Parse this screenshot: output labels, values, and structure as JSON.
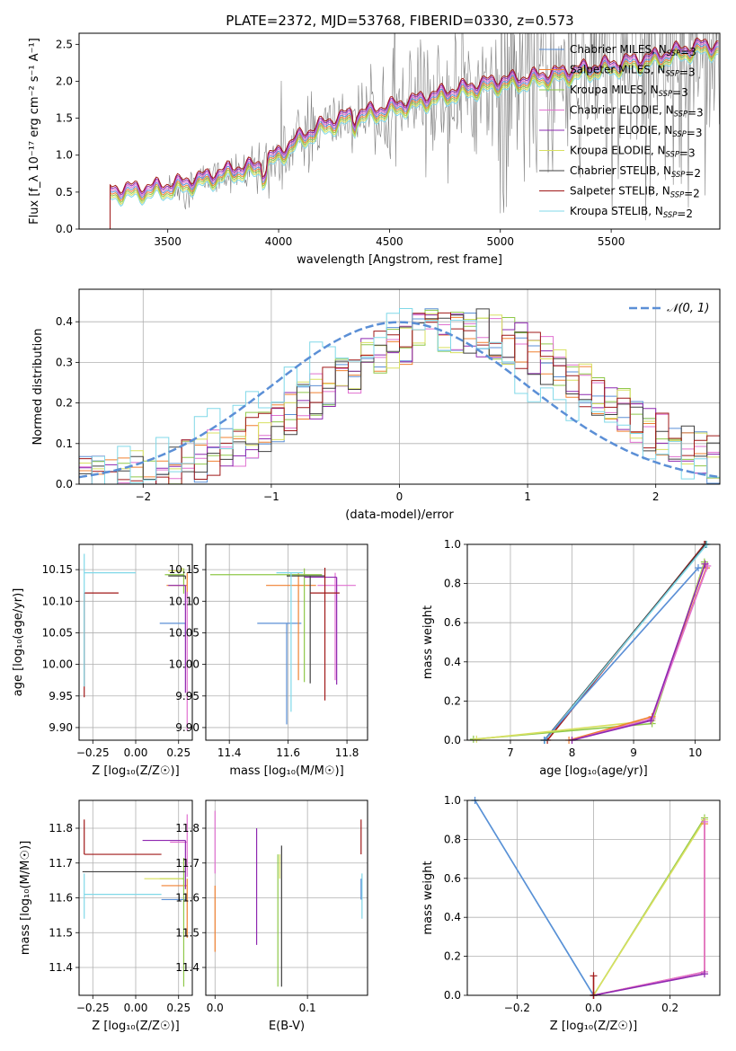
{
  "title": "PLATE=2372, MJD=53768, FIBERID=0330, z=0.573",
  "colors": {
    "chabrier_miles": "#5b8fd6",
    "salpeter_miles": "#f08030",
    "kroupa_miles": "#8fc84a",
    "chabrier_elodie": "#e070d0",
    "salpeter_elodie": "#8e28b0",
    "kroupa_elodie": "#d8e060",
    "chabrier_stelib": "#404040",
    "salpeter_stelib": "#a01818",
    "kroupa_stelib": "#80d8e8",
    "data_gray": "#808080",
    "normal_curve": "#5b8fd6",
    "grid": "#b0b0b0"
  },
  "chart_data": [
    {
      "id": "spectrum",
      "type": "line",
      "title": "PLATE=2372, MJD=53768, FIBERID=0330, z=0.573",
      "xlabel": "wavelength [Angstrom, rest frame]",
      "ylabel": "Flux [f_λ 10⁻¹⁷ erg cm⁻² s⁻¹ A⁻¹]",
      "xlim": [
        3100,
        5990
      ],
      "ylim": [
        0,
        2.65
      ],
      "xticks": [
        "3500",
        "4000",
        "4500",
        "5000",
        "5500"
      ],
      "yticks": [
        "0.0",
        "0.5",
        "1.0",
        "1.5",
        "2.0",
        "2.5"
      ],
      "grid": false,
      "legend_position": "right",
      "legend": [
        {
          "label": "Chabrier MILES, N_SSP=3",
          "color_key": "chabrier_miles"
        },
        {
          "label": "Salpeter MILES, N_SSP=3",
          "color_key": "salpeter_miles"
        },
        {
          "label": "Kroupa MILES, N_SSP=3",
          "color_key": "kroupa_miles"
        },
        {
          "label": "Chabrier ELODIE, N_SSP=3",
          "color_key": "chabrier_elodie"
        },
        {
          "label": "Salpeter ELODIE, N_SSP=3",
          "color_key": "salpeter_elodie"
        },
        {
          "label": "Kroupa ELODIE, N_SSP=3",
          "color_key": "kroupa_elodie"
        },
        {
          "label": "Chabrier STELIB, N_SSP=2",
          "color_key": "chabrier_stelib"
        },
        {
          "label": "Salpeter STELIB, N_SSP=2",
          "color_key": "salpeter_stelib"
        },
        {
          "label": "Kroupa STELIB, N_SSP=2",
          "color_key": "kroupa_stelib"
        }
      ],
      "model_trend": {
        "x": [
          3240,
          3400,
          3500,
          3600,
          3700,
          3800,
          3900,
          4000,
          4100,
          4200,
          4300,
          4400,
          4500,
          4600,
          4700,
          4800,
          4900,
          5000,
          5100,
          5200,
          5300,
          5400,
          5500,
          5600,
          5700,
          5800,
          5900
        ],
        "y": [
          0.5,
          0.52,
          0.55,
          0.62,
          0.7,
          0.78,
          0.82,
          1.0,
          1.22,
          1.38,
          1.5,
          1.55,
          1.62,
          1.7,
          1.78,
          1.85,
          1.92,
          1.98,
          2.0,
          2.05,
          2.1,
          2.15,
          2.2,
          2.25,
          2.3,
          2.38,
          2.45
        ]
      }
    },
    {
      "id": "residual_histogram",
      "type": "line",
      "xlabel": "(data-model)/error",
      "ylabel": "Normed distribution",
      "xlim": [
        -2.5,
        2.5
      ],
      "ylim": [
        0,
        0.48
      ],
      "xticks": [
        "−2",
        "−1",
        "0",
        "1",
        "2"
      ],
      "yticks": [
        "0.0",
        "0.1",
        "0.2",
        "0.3",
        "0.4"
      ],
      "grid": true,
      "legend_position": "top-right",
      "legend": [
        {
          "label": "𝒩(0, 1)",
          "color_key": "normal_curve"
        }
      ],
      "bin_width": 0.1,
      "hist_mean": 0.45,
      "hist_sigma": 1.05
    },
    {
      "id": "age_vs_Z",
      "type": "scatter",
      "xlabel": "Z [log₁₀(Z/Z☉)]",
      "ylabel": "age  [log₁₀(age/yr)]",
      "xlim": [
        -0.33,
        0.33
      ],
      "ylim": [
        9.88,
        10.19
      ],
      "xticks": [
        "−0.25",
        "0.00",
        "0.25"
      ],
      "yticks": [
        "9.90",
        "9.95",
        "10.00",
        "10.05",
        "10.10",
        "10.15"
      ],
      "grid": true,
      "points": [
        {
          "color_key": "chabrier_miles",
          "x": 0.29,
          "y": 10.065,
          "xerr": [
            0.15,
            0.0
          ],
          "yerr": [
            0.02,
            0.0
          ]
        },
        {
          "color_key": "salpeter_miles",
          "x": 0.3,
          "y": 10.125,
          "xerr": [
            0.12,
            0.0
          ],
          "yerr": [
            0.02,
            0.02
          ]
        },
        {
          "color_key": "kroupa_miles",
          "x": 0.28,
          "y": 10.142,
          "xerr": [
            0.11,
            0.0
          ],
          "yerr": [
            0.03,
            0.01
          ]
        },
        {
          "color_key": "chabrier_elodie",
          "x": 0.3,
          "y": 10.115,
          "xerr": [
            0.0,
            0.0
          ],
          "yerr": [
            0.22,
            0.0
          ]
        },
        {
          "color_key": "salpeter_elodie",
          "x": 0.29,
          "y": 10.125,
          "xerr": [
            0.1,
            0.0
          ],
          "yerr": [
            0.17,
            0.0
          ]
        },
        {
          "color_key": "kroupa_elodie",
          "x": 0.27,
          "y": 10.148,
          "xerr": [
            0.08,
            0.0
          ],
          "yerr": [
            0.0,
            0.005
          ]
        },
        {
          "color_key": "chabrier_stelib",
          "x": 0.29,
          "y": 10.14,
          "xerr": [
            0.1,
            0.0
          ],
          "yerr": [
            0.005,
            0.0
          ]
        },
        {
          "color_key": "salpeter_stelib",
          "x": -0.3,
          "y": 10.113,
          "xerr": [
            0.0,
            0.2
          ],
          "yerr": [
            0.165,
            0.0
          ]
        },
        {
          "color_key": "kroupa_stelib",
          "x": -0.3,
          "y": 10.145,
          "xerr": [
            0.0,
            0.3
          ],
          "yerr": [
            0.18,
            0.03
          ]
        }
      ]
    },
    {
      "id": "age_vs_mass",
      "type": "scatter",
      "xlabel": "mass [log₁₀(M/M☉)]",
      "ylabel": "",
      "xlim": [
        11.32,
        11.87
      ],
      "ylim": [
        9.88,
        10.19
      ],
      "xticks": [
        "11.4",
        "11.6",
        "11.8"
      ],
      "yticks": [
        "9.90",
        "9.95",
        "10.00",
        "10.05",
        "10.10",
        "10.15"
      ],
      "grid": true,
      "points": [
        {
          "color_key": "chabrier_miles",
          "x": 11.595,
          "y": 10.065,
          "xerr": [
            0.1,
            0.05
          ],
          "yerr": [
            0.16,
            0.0
          ]
        },
        {
          "color_key": "salpeter_miles",
          "x": 11.635,
          "y": 10.125,
          "xerr": [
            0.11,
            0.06
          ],
          "yerr": [
            0.15,
            0.02
          ]
        },
        {
          "color_key": "kroupa_miles",
          "x": 11.655,
          "y": 10.142,
          "xerr": [
            0.32,
            0.06
          ],
          "yerr": [
            0.17,
            0.01
          ]
        },
        {
          "color_key": "chabrier_elodie",
          "x": 11.76,
          "y": 10.125,
          "xerr": [
            0.06,
            0.07
          ],
          "yerr": [
            0.15,
            0.02
          ]
        },
        {
          "color_key": "salpeter_elodie",
          "x": 11.765,
          "y": 10.138,
          "xerr": [
            0.11,
            0.0
          ],
          "yerr": [
            0.17,
            0.0
          ]
        },
        {
          "color_key": "kroupa_elodie",
          "x": 11.655,
          "y": 10.142,
          "xerr": [
            0.0,
            0.0
          ],
          "yerr": [
            0.0,
            0.0
          ]
        },
        {
          "color_key": "chabrier_stelib",
          "x": 11.675,
          "y": 10.14,
          "xerr": [
            0.08,
            0.05
          ],
          "yerr": [
            0.17,
            0.0
          ]
        },
        {
          "color_key": "salpeter_stelib",
          "x": 11.725,
          "y": 10.113,
          "xerr": [
            0.05,
            0.05
          ],
          "yerr": [
            0.17,
            0.04
          ]
        },
        {
          "color_key": "kroupa_stelib",
          "x": 11.61,
          "y": 10.145,
          "xerr": [
            0.05,
            0.04
          ],
          "yerr": [
            0.22,
            0.0
          ]
        }
      ]
    },
    {
      "id": "weight_vs_age",
      "type": "line",
      "xlabel": "age  [log₁₀(age/yr)]",
      "ylabel": "mass weight",
      "xlim": [
        6.3,
        10.4
      ],
      "ylim": [
        0,
        1.0
      ],
      "xticks": [
        "7",
        "8",
        "9",
        "10"
      ],
      "yticks": [
        "0.0",
        "0.2",
        "0.4",
        "0.6",
        "0.8",
        "1.0"
      ],
      "grid": true,
      "series": [
        {
          "color_key": "salpeter_stelib",
          "x": [
            7.6,
            10.15
          ],
          "y": [
            0.0,
            1.0
          ]
        },
        {
          "color_key": "chabrier_stelib",
          "x": [
            7.55,
            10.17
          ],
          "y": [
            0.0,
            1.0
          ]
        },
        {
          "color_key": "kroupa_stelib",
          "x": [
            7.56,
            10.19
          ],
          "y": [
            0.0,
            1.0
          ]
        },
        {
          "color_key": "chabrier_miles",
          "x": [
            7.55,
            10.05,
            10.18
          ],
          "y": [
            0.0,
            0.88,
            0.88
          ]
        },
        {
          "color_key": "kroupa_miles",
          "x": [
            6.4,
            9.3,
            10.15
          ],
          "y": [
            0.005,
            0.085,
            0.91
          ]
        },
        {
          "color_key": "kroupa_elodie",
          "x": [
            6.45,
            9.3,
            10.15
          ],
          "y": [
            0.005,
            0.1,
            0.9
          ]
        },
        {
          "color_key": "salpeter_miles",
          "x": [
            7.95,
            9.3,
            10.18
          ],
          "y": [
            0.0,
            0.12,
            0.88
          ]
        },
        {
          "color_key": "chabrier_elodie",
          "x": [
            8.0,
            9.3,
            10.2
          ],
          "y": [
            0.0,
            0.11,
            0.89
          ]
        },
        {
          "color_key": "salpeter_elodie",
          "x": [
            8.0,
            9.28,
            10.16
          ],
          "y": [
            0.0,
            0.1,
            0.9
          ]
        }
      ]
    },
    {
      "id": "mass_vs_Z",
      "type": "scatter",
      "xlabel": "Z [log₁₀(Z/Z☉)]",
      "ylabel": "mass [log₁₀(M/M☉)]",
      "xlim": [
        -0.33,
        0.33
      ],
      "ylim": [
        11.32,
        11.88
      ],
      "xticks": [
        "−0.25",
        "0.00",
        "0.25"
      ],
      "yticks": [
        "11.4",
        "11.5",
        "11.6",
        "11.7",
        "11.8"
      ],
      "grid": true,
      "points": [
        {
          "color_key": "chabrier_miles",
          "x": 0.29,
          "y": 11.595,
          "xerr": [
            0.14,
            0.0
          ],
          "yerr": [
            0.0,
            0.0
          ]
        },
        {
          "color_key": "salpeter_miles",
          "x": 0.3,
          "y": 11.635,
          "xerr": [
            0.15,
            0.0
          ],
          "yerr": [
            0.15,
            0.02
          ]
        },
        {
          "color_key": "kroupa_miles",
          "x": 0.28,
          "y": 11.655,
          "xerr": [
            0.14,
            0.0
          ],
          "yerr": [
            0.31,
            0.06
          ]
        },
        {
          "color_key": "chabrier_elodie",
          "x": 0.3,
          "y": 11.76,
          "xerr": [
            0.1,
            0.0
          ],
          "yerr": [
            0.1,
            0.08
          ]
        },
        {
          "color_key": "salpeter_elodie",
          "x": 0.29,
          "y": 11.765,
          "xerr": [
            0.25,
            0.0
          ],
          "yerr": [
            0.14,
            0.0
          ]
        },
        {
          "color_key": "kroupa_elodie",
          "x": 0.27,
          "y": 11.655,
          "xerr": [
            0.22,
            0.0
          ],
          "yerr": [
            0.0,
            0.0
          ]
        },
        {
          "color_key": "chabrier_stelib",
          "x": 0.29,
          "y": 11.675,
          "xerr": [
            0.6,
            0.0
          ],
          "yerr": [
            0.0,
            0.0
          ]
        },
        {
          "color_key": "salpeter_stelib",
          "x": -0.3,
          "y": 11.725,
          "xerr": [
            0.0,
            0.45
          ],
          "yerr": [
            0.0,
            0.1
          ]
        },
        {
          "color_key": "kroupa_stelib",
          "x": -0.3,
          "y": 11.61,
          "xerr": [
            0.0,
            0.45
          ],
          "yerr": [
            0.07,
            0.06
          ]
        }
      ]
    },
    {
      "id": "mass_vs_ebv",
      "type": "scatter",
      "xlabel": "E(B-V)",
      "ylabel": "",
      "xlim": [
        -0.01,
        0.165
      ],
      "ylim": [
        11.32,
        11.88
      ],
      "xticks": [
        "0.0",
        "0.1"
      ],
      "yticks": [
        "11.4",
        "11.5",
        "11.6",
        "11.7",
        "11.8"
      ],
      "grid": true,
      "points": [
        {
          "color_key": "chabrier_elodie",
          "x": 0.0,
          "y": 11.76,
          "xerr": [
            0.0,
            0.0
          ],
          "yerr": [
            0.09,
            0.09
          ]
        },
        {
          "color_key": "salpeter_miles",
          "x": 0.0,
          "y": 11.635,
          "xerr": [
            0.0,
            0.0
          ],
          "yerr": [
            0.19,
            0.0
          ]
        },
        {
          "color_key": "salpeter_elodie",
          "x": 0.045,
          "y": 11.765,
          "xerr": [
            0.0,
            0.0
          ],
          "yerr": [
            0.3,
            0.035
          ]
        },
        {
          "color_key": "kroupa_miles",
          "x": 0.068,
          "y": 11.655,
          "xerr": [
            0.0,
            0.0
          ],
          "yerr": [
            0.31,
            0.07
          ]
        },
        {
          "color_key": "kroupa_elodie",
          "x": 0.07,
          "y": 11.655,
          "xerr": [
            0.0,
            0.0
          ],
          "yerr": [
            0.0,
            0.07
          ]
        },
        {
          "color_key": "chabrier_stelib",
          "x": 0.072,
          "y": 11.675,
          "xerr": [
            0.0,
            0.0
          ],
          "yerr": [
            0.33,
            0.075
          ]
        },
        {
          "color_key": "salpeter_stelib",
          "x": 0.158,
          "y": 11.725,
          "xerr": [
            0.0,
            0.0
          ],
          "yerr": [
            0.0,
            0.1
          ]
        },
        {
          "color_key": "kroupa_stelib",
          "x": 0.159,
          "y": 11.61,
          "xerr": [
            0.0,
            0.0
          ],
          "yerr": [
            0.07,
            0.06
          ]
        },
        {
          "color_key": "chabrier_miles",
          "x": 0.158,
          "y": 11.595,
          "xerr": [
            0.0,
            0.0
          ],
          "yerr": [
            0.0,
            0.06
          ]
        }
      ]
    },
    {
      "id": "weight_vs_Z",
      "type": "line",
      "xlabel": "Z [log₁₀(Z/Z☉)]",
      "ylabel": "mass weight",
      "xlim": [
        -0.33,
        0.33
      ],
      "ylim": [
        0,
        1.0
      ],
      "xticks": [
        "−0.2",
        "0.0",
        "0.2"
      ],
      "yticks": [
        "0.0",
        "0.2",
        "0.4",
        "0.6",
        "0.8",
        "1.0"
      ],
      "grid": true,
      "series": [
        {
          "color_key": "kroupa_stelib",
          "x": [
            -0.31,
            0.0
          ],
          "y": [
            1.0,
            0.0
          ]
        },
        {
          "color_key": "chabrier_miles",
          "x": [
            -0.31,
            0.0
          ],
          "y": [
            1.0,
            0.0
          ]
        },
        {
          "color_key": "kroupa_miles",
          "x": [
            0.0,
            0.29
          ],
          "y": [
            0.0,
            0.91
          ]
        },
        {
          "color_key": "kroupa_elodie",
          "x": [
            0.0,
            0.29
          ],
          "y": [
            0.0,
            0.9
          ]
        },
        {
          "color_key": "salpeter_miles",
          "x": [
            0.0,
            0.29,
            0.29
          ],
          "y": [
            0.0,
            0.12,
            0.88
          ]
        },
        {
          "color_key": "chabrier_elodie",
          "x": [
            0.0,
            0.29,
            0.29
          ],
          "y": [
            0.0,
            0.12,
            0.89
          ]
        },
        {
          "color_key": "salpeter_elodie",
          "x": [
            0.0,
            0.29
          ],
          "y": [
            0.0,
            0.11
          ]
        },
        {
          "color_key": "salpeter_stelib",
          "x": [
            0.0,
            0.0
          ],
          "y": [
            0.0,
            0.1
          ]
        }
      ]
    }
  ]
}
